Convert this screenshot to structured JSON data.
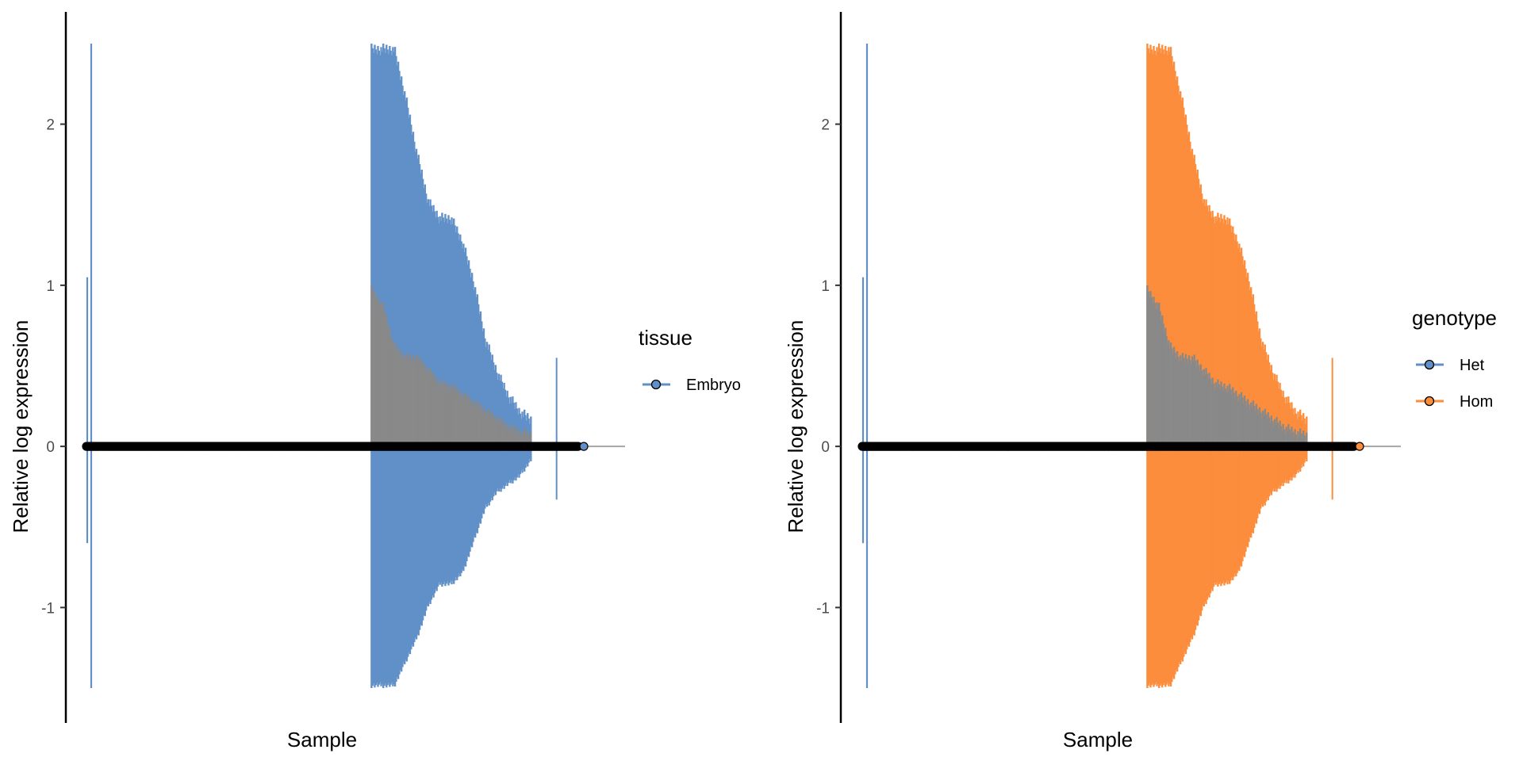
{
  "chart_data": [
    {
      "type": "line",
      "title": "",
      "xlabel": "Sample",
      "ylabel": "Relative log expression",
      "ylim": [
        -1.5,
        2.5
      ],
      "yticks": [
        "-1",
        "0",
        "1",
        "2"
      ],
      "grid": false,
      "baseline": 0,
      "legend": {
        "title": "tissue",
        "position": "right",
        "entries": [
          "Embryo"
        ]
      },
      "legend_colors": [
        "#6190c8"
      ],
      "series": [
        {
          "name": "Embryo",
          "color": "#6190c8",
          "ranges": [
            [
              -0.6,
              1.05
            ],
            [
              -1.5,
              2.5
            ]
          ],
          "dense_block": {
            "start": 0.55,
            "end": 0.86,
            "upper": [
              2.5,
              2.5,
              2.5,
              2.2,
              1.85,
              1.55,
              1.45,
              1.45,
              1.3,
              1.05,
              0.7,
              0.5,
              0.35,
              0.25,
              0.2
            ],
            "lower": [
              -1.5,
              -1.5,
              -1.5,
              -1.35,
              -1.2,
              -1.0,
              -0.87,
              -0.87,
              -0.8,
              -0.6,
              -0.4,
              -0.3,
              -0.25,
              -0.2,
              -0.1
            ]
          },
          "outliers": [
            [
              0.91,
              -0.33,
              0.55
            ]
          ]
        },
        {
          "name": "median",
          "color": "#898989",
          "dense_block": {
            "start": 0.55,
            "end": 0.86,
            "upper": [
              1.0,
              0.9,
              0.65,
              0.58,
              0.58,
              0.5,
              0.42,
              0.4,
              0.35,
              0.3,
              0.25,
              0.2,
              0.15,
              0.12,
              0.1
            ]
          }
        }
      ],
      "points": {
        "count": 500,
        "y": 0,
        "color": "#000000",
        "last_point_color": "#6190c8"
      }
    },
    {
      "type": "line",
      "title": "",
      "xlabel": "Sample",
      "ylabel": "Relative log expression",
      "ylim": [
        -1.5,
        2.5
      ],
      "yticks": [
        "-1",
        "0",
        "1",
        "2"
      ],
      "grid": false,
      "baseline": 0,
      "legend": {
        "title": "genotype",
        "position": "right",
        "entries": [
          "Het",
          "Hom"
        ]
      },
      "legend_colors": [
        "#6190c8",
        "#fb8d3c"
      ],
      "series": [
        {
          "name": "Het",
          "color": "#6190c8",
          "ranges": [
            [
              -0.6,
              1.05
            ],
            [
              -1.5,
              2.5
            ]
          ]
        },
        {
          "name": "Hom",
          "color": "#fb8d3c",
          "dense_block": {
            "start": 0.55,
            "end": 0.86,
            "upper": [
              2.5,
              2.5,
              2.5,
              2.2,
              1.85,
              1.55,
              1.45,
              1.45,
              1.3,
              1.05,
              0.7,
              0.5,
              0.35,
              0.25,
              0.2
            ],
            "lower": [
              -1.5,
              -1.5,
              -1.5,
              -1.35,
              -1.2,
              -1.0,
              -0.87,
              -0.87,
              -0.8,
              -0.6,
              -0.4,
              -0.3,
              -0.25,
              -0.2,
              -0.1
            ]
          },
          "outliers": [
            [
              0.91,
              -0.33,
              0.55
            ]
          ]
        },
        {
          "name": "median",
          "color": "#898989",
          "dense_block": {
            "start": 0.55,
            "end": 0.86,
            "upper": [
              1.0,
              0.9,
              0.65,
              0.58,
              0.58,
              0.5,
              0.42,
              0.4,
              0.35,
              0.3,
              0.25,
              0.2,
              0.15,
              0.12,
              0.1
            ]
          }
        }
      ],
      "points": {
        "count": 500,
        "y": 0,
        "color": "#000000",
        "last_point_color": "#fb8d3c"
      }
    }
  ]
}
